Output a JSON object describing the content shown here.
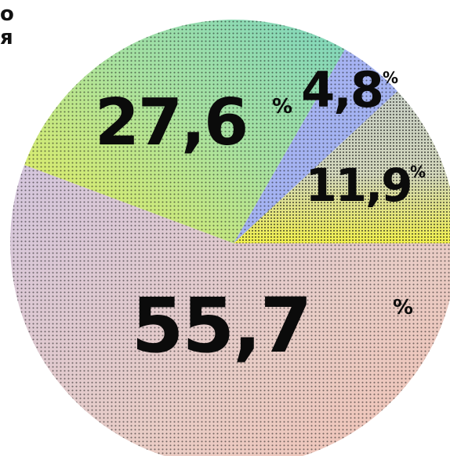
{
  "header": {
    "line1": "о",
    "line2": "я"
  },
  "chart_data": {
    "type": "pie",
    "title": "",
    "percent_sign": "%",
    "slices": [
      {
        "label": "55,7",
        "value": 55.7,
        "color": "#d9c9c9"
      },
      {
        "label": "27,6",
        "value": 27.6,
        "color": "#bfe3a8"
      },
      {
        "label": "4,8",
        "value": 4.8,
        "color": "#a9b7f2"
      },
      {
        "label": "11,9",
        "value": 11.9,
        "color": "#dfe86a"
      }
    ],
    "colors": {
      "large_slice_pink": "#e9c8c2",
      "large_slice_lilac": "#d4c7dd",
      "green_slice_top": "#8fd8b5",
      "green_slice_bottom": "#e7ec5e",
      "blue_slice": "#a7b6f4",
      "yellow_slice": "#f1f04e",
      "grey_slice": "#c9cfc6"
    }
  }
}
